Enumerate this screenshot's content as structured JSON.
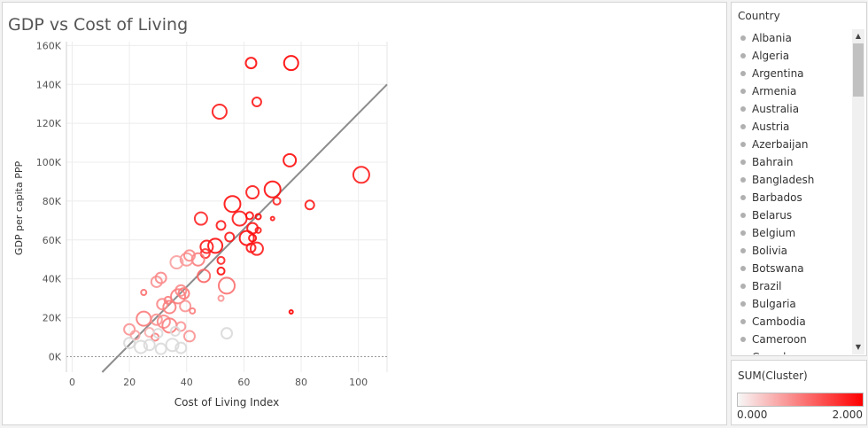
{
  "chart_data": {
    "type": "scatter",
    "title": "GDP vs Cost of Living",
    "xlabel": "Cost of Living Index",
    "ylabel": "GDP per capita PPP",
    "xlim": [
      -2,
      110
    ],
    "ylim": [
      -8000,
      162000
    ],
    "x_ticks": [
      0,
      20,
      40,
      60,
      80,
      100
    ],
    "x_tick_labels": [
      "0",
      "20",
      "40",
      "60",
      "80",
      "100"
    ],
    "y_ticks": [
      0,
      20000,
      40000,
      60000,
      80000,
      100000,
      120000,
      140000,
      160000
    ],
    "y_tick_labels": [
      "0K",
      "20K",
      "40K",
      "60K",
      "80K",
      "100K",
      "120K",
      "140K",
      "160K"
    ],
    "grid": true,
    "trend_line": {
      "x": [
        10.5,
        110
      ],
      "y": [
        -8000,
        140000
      ]
    },
    "size_scale": "circle radius",
    "color_scale": "sum of cluster 0 to 2, white to red",
    "points": [
      {
        "x": 62.5,
        "y": 151000,
        "size": 6,
        "cluster": 1.9
      },
      {
        "x": 76.5,
        "y": 151000,
        "size": 8,
        "cluster": 2.0
      },
      {
        "x": 51.5,
        "y": 126000,
        "size": 8,
        "cluster": 1.8
      },
      {
        "x": 64.5,
        "y": 131000,
        "size": 5,
        "cluster": 1.8
      },
      {
        "x": 76,
        "y": 101000,
        "size": 7,
        "cluster": 1.9
      },
      {
        "x": 101,
        "y": 93500,
        "size": 9,
        "cluster": 1.8
      },
      {
        "x": 70,
        "y": 86000,
        "size": 9,
        "cluster": 1.9
      },
      {
        "x": 63,
        "y": 84500,
        "size": 7,
        "cluster": 1.8
      },
      {
        "x": 56,
        "y": 78500,
        "size": 9,
        "cluster": 1.9
      },
      {
        "x": 71.5,
        "y": 80000,
        "size": 4,
        "cluster": 1.7
      },
      {
        "x": 83,
        "y": 78000,
        "size": 5,
        "cluster": 1.8
      },
      {
        "x": 45,
        "y": 71000,
        "size": 7,
        "cluster": 1.7
      },
      {
        "x": 58.5,
        "y": 71000,
        "size": 8,
        "cluster": 1.8
      },
      {
        "x": 62,
        "y": 72500,
        "size": 4,
        "cluster": 1.9
      },
      {
        "x": 65,
        "y": 72000,
        "size": 3,
        "cluster": 2.0
      },
      {
        "x": 70,
        "y": 71000,
        "size": 2,
        "cluster": 1.8
      },
      {
        "x": 52,
        "y": 67500,
        "size": 5,
        "cluster": 1.8
      },
      {
        "x": 63,
        "y": 66000,
        "size": 6,
        "cluster": 1.8
      },
      {
        "x": 61,
        "y": 61000,
        "size": 8,
        "cluster": 1.9
      },
      {
        "x": 55,
        "y": 61500,
        "size": 5,
        "cluster": 1.8
      },
      {
        "x": 63,
        "y": 61000,
        "size": 4,
        "cluster": 1.9
      },
      {
        "x": 65,
        "y": 65000,
        "size": 3,
        "cluster": 1.8
      },
      {
        "x": 50,
        "y": 57000,
        "size": 8,
        "cluster": 1.9
      },
      {
        "x": 47,
        "y": 56500,
        "size": 7,
        "cluster": 1.8
      },
      {
        "x": 64.5,
        "y": 55500,
        "size": 7,
        "cluster": 1.8
      },
      {
        "x": 62.5,
        "y": 56000,
        "size": 5,
        "cluster": 1.8
      },
      {
        "x": 46.5,
        "y": 53000,
        "size": 5,
        "cluster": 1.6
      },
      {
        "x": 52,
        "y": 49500,
        "size": 4,
        "cluster": 1.7
      },
      {
        "x": 52,
        "y": 44000,
        "size": 4,
        "cluster": 1.9
      },
      {
        "x": 44,
        "y": 50000,
        "size": 7,
        "cluster": 1.0
      },
      {
        "x": 40,
        "y": 50000,
        "size": 7,
        "cluster": 0.8
      },
      {
        "x": 41,
        "y": 52000,
        "size": 6,
        "cluster": 0.9
      },
      {
        "x": 36.5,
        "y": 48500,
        "size": 7,
        "cluster": 0.7
      },
      {
        "x": 46,
        "y": 41500,
        "size": 7,
        "cluster": 1.2
      },
      {
        "x": 54,
        "y": 36500,
        "size": 9,
        "cluster": 1.1
      },
      {
        "x": 29.5,
        "y": 38500,
        "size": 6,
        "cluster": 0.8
      },
      {
        "x": 31,
        "y": 40500,
        "size": 6,
        "cluster": 0.9
      },
      {
        "x": 38,
        "y": 34000,
        "size": 6,
        "cluster": 0.9
      },
      {
        "x": 39,
        "y": 32500,
        "size": 6,
        "cluster": 1.0
      },
      {
        "x": 37,
        "y": 31000,
        "size": 8,
        "cluster": 1.0
      },
      {
        "x": 25,
        "y": 33000,
        "size": 3,
        "cluster": 1.1
      },
      {
        "x": 33.5,
        "y": 29000,
        "size": 4,
        "cluster": 1.0
      },
      {
        "x": 31.5,
        "y": 27000,
        "size": 6,
        "cluster": 0.9
      },
      {
        "x": 34,
        "y": 25500,
        "size": 7,
        "cluster": 1.0
      },
      {
        "x": 39.5,
        "y": 26000,
        "size": 6,
        "cluster": 0.8
      },
      {
        "x": 42,
        "y": 23500,
        "size": 3,
        "cluster": 1.0
      },
      {
        "x": 52,
        "y": 30000,
        "size": 3,
        "cluster": 0.8
      },
      {
        "x": 76.5,
        "y": 23000,
        "size": 2,
        "cluster": 2.0
      },
      {
        "x": 25,
        "y": 19500,
        "size": 8,
        "cluster": 1.0
      },
      {
        "x": 29.5,
        "y": 19000,
        "size": 6,
        "cluster": 0.8
      },
      {
        "x": 32,
        "y": 18000,
        "size": 7,
        "cluster": 0.9
      },
      {
        "x": 34,
        "y": 16000,
        "size": 8,
        "cluster": 1.0
      },
      {
        "x": 38,
        "y": 15500,
        "size": 5,
        "cluster": 0.8
      },
      {
        "x": 20,
        "y": 14000,
        "size": 6,
        "cluster": 0.8
      },
      {
        "x": 22,
        "y": 11000,
        "size": 5,
        "cluster": 0.7
      },
      {
        "x": 27,
        "y": 12500,
        "size": 5,
        "cluster": 0.6
      },
      {
        "x": 29,
        "y": 10000,
        "size": 4,
        "cluster": 1.0
      },
      {
        "x": 41,
        "y": 10500,
        "size": 6,
        "cluster": 0.8
      },
      {
        "x": 54,
        "y": 12000,
        "size": 6,
        "cluster": 0.05
      },
      {
        "x": 20,
        "y": 7000,
        "size": 6,
        "cluster": 0.1
      },
      {
        "x": 24,
        "y": 5000,
        "size": 7,
        "cluster": 0.15
      },
      {
        "x": 27,
        "y": 6000,
        "size": 6,
        "cluster": 0.1
      },
      {
        "x": 31,
        "y": 4000,
        "size": 6,
        "cluster": 0.15
      },
      {
        "x": 35,
        "y": 6000,
        "size": 7,
        "cluster": 0.1
      },
      {
        "x": 38,
        "y": 4500,
        "size": 6,
        "cluster": 0.2
      },
      {
        "x": 30,
        "y": 12000,
        "size": 5,
        "cluster": 0.1
      },
      {
        "x": 36,
        "y": 13000,
        "size": 5,
        "cluster": 0.15
      }
    ]
  },
  "legend": {
    "title": "Country",
    "items": [
      "Albania",
      "Algeria",
      "Argentina",
      "Armenia",
      "Australia",
      "Austria",
      "Azerbaijan",
      "Bahrain",
      "Bangladesh",
      "Barbados",
      "Belarus",
      "Belgium",
      "Bolivia",
      "Botswana",
      "Brazil",
      "Bulgaria",
      "Cambodia",
      "Cameroon",
      "Canada"
    ]
  },
  "color_legend": {
    "title": "SUM(Cluster)",
    "min_label": "0.000",
    "max_label": "2.000",
    "min_color": "#f7f7f7",
    "max_color": "#ff0000"
  },
  "scrollbar": {
    "up_icon": "▲",
    "down_icon": "▼"
  }
}
